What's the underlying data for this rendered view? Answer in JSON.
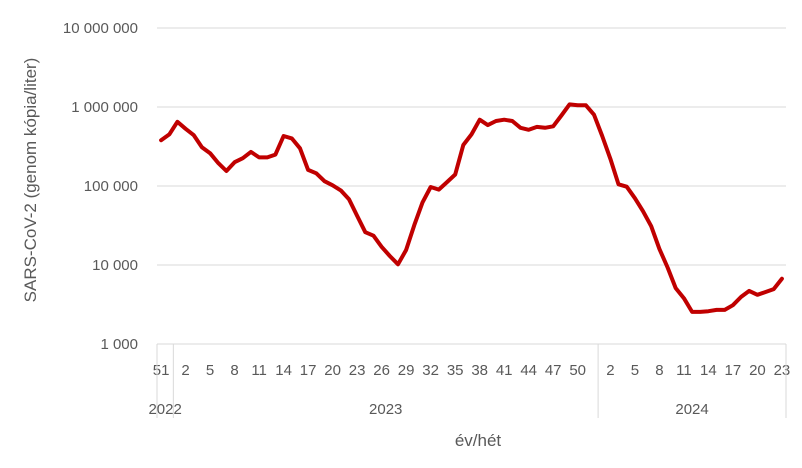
{
  "chart_data": {
    "type": "line",
    "ylabel": "SARS-CoV-2 (genom kópia/liter)",
    "xlabel": "év/hét",
    "y_scale": "log",
    "ylim": [
      1000,
      10000000
    ],
    "y_ticks": [
      "1 000",
      "10 000",
      "100 000",
      "1 000 000",
      "10 000 000"
    ],
    "grid": "horizontal",
    "line_color": "#C00000",
    "years": [
      {
        "label": "2022",
        "first_week": "51",
        "last_week": "52"
      },
      {
        "label": "2023",
        "first_week": "1",
        "last_week": "52"
      },
      {
        "label": "2024",
        "first_week": "1",
        "last_week": "23"
      }
    ],
    "week_tick_labels": [
      "51",
      "2",
      "5",
      "8",
      "11",
      "14",
      "17",
      "20",
      "23",
      "26",
      "29",
      "32",
      "35",
      "38",
      "41",
      "44",
      "47",
      "50",
      "2",
      "5",
      "8",
      "11",
      "14",
      "17",
      "20",
      "23"
    ],
    "series": [
      {
        "x": [
          "2022/51",
          "2022/52",
          "2023/1",
          "2023/2",
          "2023/3",
          "2023/4",
          "2023/5",
          "2023/6",
          "2023/7",
          "2023/8",
          "2023/9",
          "2023/10",
          "2023/11",
          "2023/12",
          "2023/13",
          "2023/14",
          "2023/15",
          "2023/16",
          "2023/17",
          "2023/18",
          "2023/19",
          "2023/20",
          "2023/21",
          "2023/22",
          "2023/23",
          "2023/24",
          "2023/25",
          "2023/26",
          "2023/27",
          "2023/28",
          "2023/29",
          "2023/30",
          "2023/31",
          "2023/32",
          "2023/33",
          "2023/34",
          "2023/35",
          "2023/36",
          "2023/37",
          "2023/38",
          "2023/39",
          "2023/40",
          "2023/41",
          "2023/42",
          "2023/43",
          "2023/44",
          "2023/45",
          "2023/46",
          "2023/47",
          "2023/48",
          "2023/49",
          "2023/50",
          "2023/51",
          "2023/52",
          "2024/1",
          "2024/2",
          "2024/3",
          "2024/4",
          "2024/5",
          "2024/6",
          "2024/7",
          "2024/8",
          "2024/9",
          "2024/10",
          "2024/11",
          "2024/12",
          "2024/13",
          "2024/14",
          "2024/15",
          "2024/16",
          "2024/17",
          "2024/18",
          "2024/19",
          "2024/20",
          "2024/21",
          "2024/22",
          "2024/23"
        ],
        "values": [
          380000,
          450000,
          650000,
          530000,
          440000,
          310000,
          260000,
          195000,
          155000,
          200000,
          225000,
          270000,
          230000,
          230000,
          250000,
          430000,
          400000,
          300000,
          160000,
          145000,
          115000,
          102000,
          88000,
          68000,
          42000,
          26000,
          23500,
          17000,
          13000,
          10200,
          15500,
          32000,
          62000,
          97000,
          90000,
          112000,
          140000,
          330000,
          450000,
          690000,
          590000,
          665000,
          690000,
          665000,
          545000,
          515000,
          560000,
          545000,
          570000,
          780000,
          1080000,
          1050000,
          1050000,
          800000,
          430000,
          220000,
          105000,
          98000,
          70000,
          48000,
          31000,
          16000,
          9300,
          5100,
          3800,
          2550,
          2550,
          2600,
          2700,
          2700,
          3100,
          3950,
          4700,
          4200,
          4550,
          4950,
          6700
        ]
      }
    ]
  }
}
